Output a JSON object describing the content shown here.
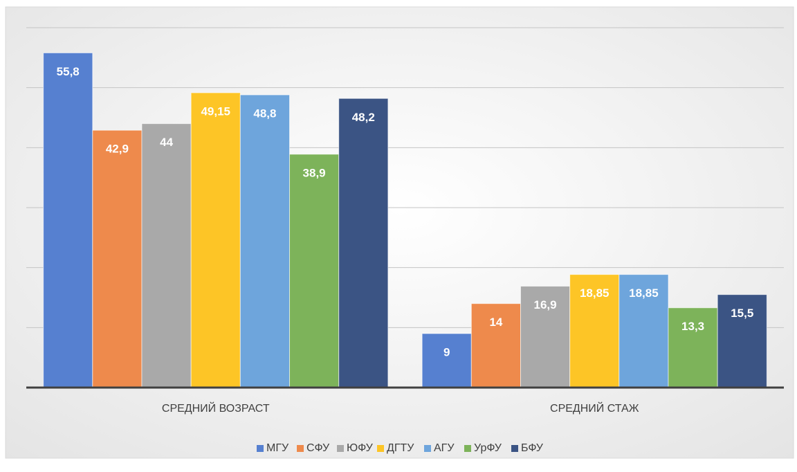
{
  "chart_data": {
    "type": "bar",
    "categories": [
      "СРЕДНИЙ ВОЗРАСТ",
      "СРЕДНИЙ СТАЖ"
    ],
    "series": [
      {
        "name": "МГУ",
        "color": "#5680d0",
        "values": [
          55.8,
          9
        ],
        "value_labels": [
          "55,8",
          "9"
        ]
      },
      {
        "name": "СФУ",
        "color": "#ee8a4c",
        "values": [
          42.9,
          14
        ],
        "value_labels": [
          "42,9",
          "14"
        ]
      },
      {
        "name": "ЮФУ",
        "color": "#a9a9a9",
        "values": [
          44,
          16.9
        ],
        "value_labels": [
          "44",
          "16,9"
        ]
      },
      {
        "name": "ДГТУ",
        "color": "#fdc526",
        "values": [
          49.15,
          18.85
        ],
        "value_labels": [
          "49,15",
          "18,85"
        ]
      },
      {
        "name": "АГУ",
        "color": "#6ea5dc",
        "values": [
          48.8,
          18.85
        ],
        "value_labels": [
          "48,8",
          "18,85"
        ]
      },
      {
        "name": "УрФУ",
        "color": "#7db35a",
        "values": [
          38.9,
          13.3
        ],
        "value_labels": [
          "38,9",
          "13,3"
        ]
      },
      {
        "name": "БФУ",
        "color": "#3b5484",
        "values": [
          48.2,
          15.5
        ],
        "value_labels": [
          "48,2",
          "15,5"
        ]
      }
    ],
    "ylim": [
      0,
      60
    ],
    "yticks": [
      0,
      10,
      20,
      30,
      40,
      50,
      60
    ],
    "ytick_labels": false,
    "grid": true,
    "legend": "bottom"
  }
}
